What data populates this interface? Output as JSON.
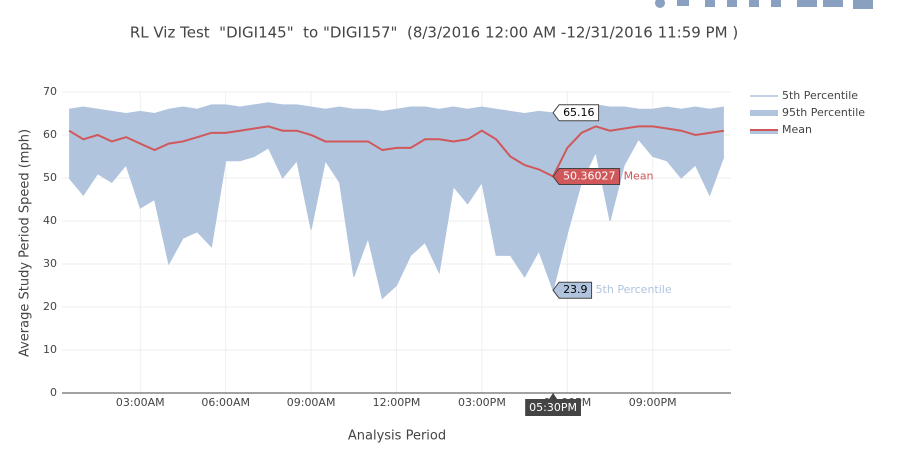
{
  "chart_data": {
    "type": "line",
    "title": "RL Viz Test  \"DIGI145\"  to \"DIGI157\"  (8/3/2016 12:00 AM -12/31/2016 11:59 PM )",
    "xlabel": "Analysis Period",
    "ylabel": "Average Study Period Speed (mph)",
    "x": [
      30,
      60,
      90,
      120,
      150,
      180,
      210,
      240,
      270,
      300,
      330,
      360,
      390,
      420,
      450,
      480,
      510,
      540,
      570,
      600,
      630,
      660,
      690,
      720,
      750,
      780,
      810,
      840,
      870,
      900,
      930,
      960,
      990,
      1020,
      1050,
      1080,
      1110,
      1140,
      1170,
      1200,
      1230,
      1260,
      1290,
      1320,
      1350,
      1380,
      1410
    ],
    "series": [
      {
        "name": "5th Percentile",
        "color": "#b0c4de",
        "values": [
          50,
          46,
          51,
          49,
          53,
          43,
          45,
          30,
          36,
          37.5,
          34,
          54,
          54,
          55,
          57,
          50,
          54,
          38,
          54,
          49,
          27,
          36,
          22,
          25,
          32,
          35,
          28,
          48,
          44,
          49,
          32,
          32,
          27,
          33,
          23.9,
          37,
          49,
          56,
          40,
          53,
          59,
          55,
          54,
          50,
          53,
          46,
          55
        ]
      },
      {
        "name": "95th Percentile",
        "color": "#b0c4de",
        "values": [
          66,
          66.5,
          66,
          65.5,
          65,
          65.5,
          65,
          66,
          66.5,
          66,
          67,
          67,
          66.5,
          67,
          67.5,
          67,
          67,
          66.5,
          66,
          66.5,
          66,
          66,
          65.5,
          66,
          66.5,
          66.5,
          66,
          66.5,
          66,
          66.5,
          66,
          65.5,
          65,
          65.5,
          65.16,
          65.5,
          66.5,
          67,
          66.5,
          66.5,
          66,
          66,
          66.5,
          66,
          66.5,
          66,
          66.5
        ]
      },
      {
        "name": "Mean",
        "color": "#d0585a",
        "values": [
          61,
          59,
          60,
          58.5,
          59.5,
          58,
          56.5,
          58,
          58.5,
          59.5,
          60.5,
          60.5,
          61,
          61.5,
          62,
          61,
          61,
          60,
          58.5,
          58.5,
          58.5,
          58.5,
          56.5,
          57,
          57,
          59,
          59,
          58.5,
          59,
          61,
          59,
          55,
          53,
          52,
          50.36027,
          57,
          60.5,
          62,
          61,
          61.5,
          62,
          62,
          61.5,
          61,
          60,
          60.5,
          61
        ]
      }
    ],
    "fill_between": true,
    "xlim": [
      15,
      1425
    ],
    "xticks": [
      {
        "value": 180,
        "label": "03:00AM"
      },
      {
        "value": 360,
        "label": "06:00AM"
      },
      {
        "value": 540,
        "label": "09:00AM"
      },
      {
        "value": 720,
        "label": "12:00PM"
      },
      {
        "value": 900,
        "label": "03:00PM"
      },
      {
        "value": 1080,
        "label": "06:00PM"
      },
      {
        "value": 1260,
        "label": "09:00PM"
      }
    ],
    "ylim": [
      0,
      70
    ],
    "yticks": [
      0,
      10,
      20,
      30,
      40,
      50,
      60,
      70
    ],
    "grid": true,
    "legend": "right",
    "hover": {
      "x": 1050,
      "label": "05:30PM"
    }
  }
}
